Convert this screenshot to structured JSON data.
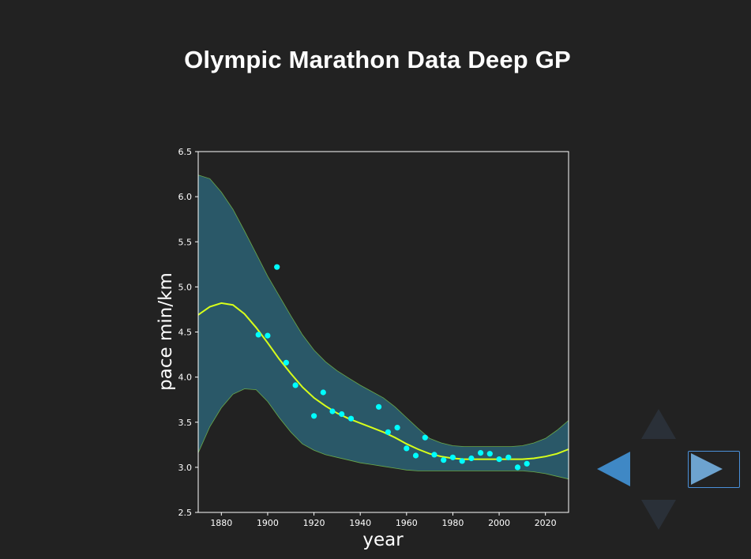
{
  "slide": {
    "title": "Olympic Marathon Data Deep GP"
  },
  "colors": {
    "background": "#222222",
    "axes_face": "#222222",
    "band_fill": "#2a5868",
    "band_edge": "#6aaa4a",
    "mean_line": "#d8ff1a",
    "points": "#00ffff",
    "text": "#ffffff",
    "nav_active": "#3f88c5",
    "nav_inactive": "#2a3038"
  },
  "icons": {
    "left": "triangle-left-icon",
    "right": "triangle-right-icon",
    "up": "triangle-up-icon",
    "down": "triangle-down-icon"
  },
  "chart_data": {
    "type": "line",
    "title": "",
    "xlabel": "year",
    "ylabel": "pace min/km",
    "xlim": [
      1870,
      2030
    ],
    "ylim": [
      2.5,
      6.5
    ],
    "xticks": [
      1880,
      1900,
      1920,
      1940,
      1960,
      1980,
      2000,
      2020
    ],
    "yticks": [
      2.5,
      3.0,
      3.5,
      4.0,
      4.5,
      5.0,
      5.5,
      6.0,
      6.5
    ],
    "ytick_labels": [
      "2.5",
      "3.0",
      "3.5",
      "4.0",
      "4.5",
      "5.0",
      "5.5",
      "6.0",
      "6.5"
    ],
    "grid": false,
    "series": [
      {
        "name": "data",
        "kind": "scatter",
        "x": [
          1896,
          1900,
          1904,
          1908,
          1912,
          1920,
          1924,
          1928,
          1932,
          1936,
          1948,
          1952,
          1956,
          1960,
          1964,
          1968,
          1972,
          1976,
          1980,
          1984,
          1988,
          1992,
          1996,
          2000,
          2004,
          2008,
          2012
        ],
        "y": [
          4.47,
          4.46,
          5.22,
          4.16,
          3.91,
          3.57,
          3.83,
          3.62,
          3.59,
          3.54,
          3.67,
          3.39,
          3.44,
          3.21,
          3.13,
          3.33,
          3.14,
          3.08,
          3.11,
          3.07,
          3.1,
          3.16,
          3.15,
          3.09,
          3.11,
          3.0,
          3.04
        ]
      },
      {
        "name": "mean",
        "kind": "line",
        "x": [
          1870,
          1875,
          1880,
          1885,
          1890,
          1895,
          1900,
          1905,
          1910,
          1915,
          1920,
          1925,
          1930,
          1935,
          1940,
          1945,
          1950,
          1955,
          1960,
          1965,
          1970,
          1975,
          1980,
          1985,
          1990,
          1995,
          2000,
          2005,
          2010,
          2015,
          2020,
          2025,
          2030
        ],
        "y": [
          4.69,
          4.78,
          4.82,
          4.8,
          4.7,
          4.55,
          4.38,
          4.2,
          4.04,
          3.89,
          3.77,
          3.68,
          3.6,
          3.54,
          3.49,
          3.44,
          3.39,
          3.33,
          3.26,
          3.2,
          3.15,
          3.12,
          3.1,
          3.09,
          3.09,
          3.09,
          3.09,
          3.09,
          3.09,
          3.1,
          3.12,
          3.15,
          3.2
        ]
      },
      {
        "name": "upper",
        "kind": "band-upper",
        "x": [
          1870,
          1875,
          1880,
          1885,
          1890,
          1895,
          1900,
          1905,
          1910,
          1915,
          1920,
          1925,
          1930,
          1935,
          1940,
          1945,
          1950,
          1955,
          1960,
          1965,
          1970,
          1975,
          1980,
          1985,
          1990,
          1995,
          2000,
          2005,
          2010,
          2015,
          2020,
          2025,
          2030
        ],
        "y": [
          6.24,
          6.2,
          6.05,
          5.86,
          5.62,
          5.37,
          5.12,
          4.9,
          4.68,
          4.47,
          4.3,
          4.17,
          4.07,
          3.99,
          3.91,
          3.84,
          3.77,
          3.67,
          3.55,
          3.43,
          3.32,
          3.27,
          3.24,
          3.23,
          3.23,
          3.23,
          3.23,
          3.23,
          3.24,
          3.27,
          3.32,
          3.41,
          3.52
        ]
      },
      {
        "name": "lower",
        "kind": "band-lower",
        "x": [
          1870,
          1875,
          1880,
          1885,
          1890,
          1895,
          1900,
          1905,
          1910,
          1915,
          1920,
          1925,
          1930,
          1935,
          1940,
          1945,
          1950,
          1955,
          1960,
          1965,
          1970,
          1975,
          1980,
          1985,
          1990,
          1995,
          2000,
          2005,
          2010,
          2015,
          2020,
          2025,
          2030
        ],
        "y": [
          3.16,
          3.45,
          3.66,
          3.81,
          3.87,
          3.86,
          3.73,
          3.55,
          3.39,
          3.26,
          3.19,
          3.14,
          3.11,
          3.08,
          3.05,
          3.03,
          3.01,
          2.99,
          2.97,
          2.96,
          2.96,
          2.96,
          2.96,
          2.96,
          2.96,
          2.96,
          2.96,
          2.96,
          2.96,
          2.95,
          2.93,
          2.9,
          2.87
        ]
      }
    ]
  }
}
